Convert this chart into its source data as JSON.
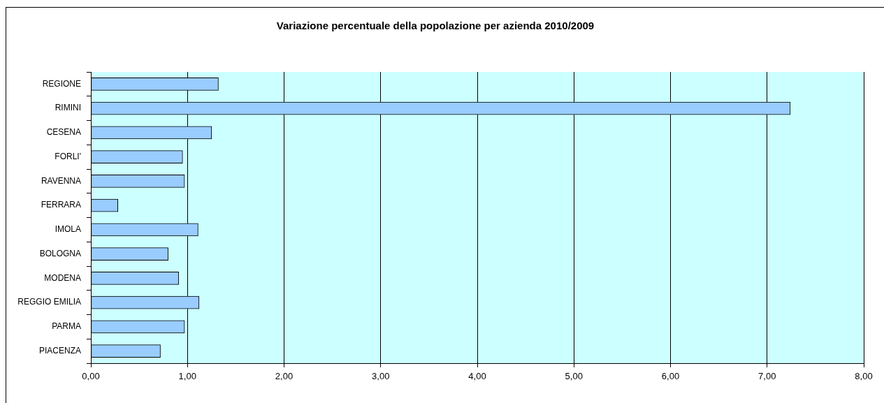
{
  "chart_data": {
    "type": "bar",
    "orientation": "horizontal",
    "title": "Variazione percentuale della popolazione per azienda 2010/2009",
    "categories": [
      "REGIONE",
      "RIMINI",
      "CESENA",
      "FORLI'",
      "RAVENNA",
      "FERRARA",
      "IMOLA",
      "BOLOGNA",
      "MODENA",
      "REGGIO EMILIA",
      "PARMA",
      "PIACENZA"
    ],
    "values": [
      1.32,
      7.24,
      1.25,
      0.95,
      0.97,
      0.28,
      1.11,
      0.8,
      0.91,
      1.12,
      0.97,
      0.72
    ],
    "color": "#99ccff",
    "xlim": [
      0,
      8
    ],
    "xticks": [
      {
        "value": 0,
        "label": "0,00"
      },
      {
        "value": 1,
        "label": "1,00"
      },
      {
        "value": 2,
        "label": "2,00"
      },
      {
        "value": 3,
        "label": "3,00"
      },
      {
        "value": 4,
        "label": "4,00"
      },
      {
        "value": 5,
        "label": "5,00"
      },
      {
        "value": 6,
        "label": "6,00"
      },
      {
        "value": 7,
        "label": "7,00"
      },
      {
        "value": 8,
        "label": "8,00"
      }
    ],
    "grid": "x"
  }
}
